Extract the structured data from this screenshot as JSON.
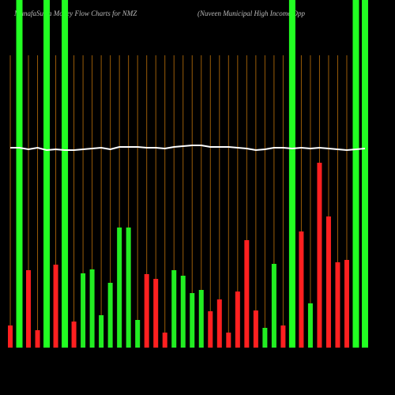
{
  "chart_data": {
    "type": "bar",
    "title": "MunafaSutra  Money Flow  Charts for NMZ",
    "subtitle": "(Nuveen  Municipal High Income   Opp",
    "ylim": [
      0,
      370
    ],
    "values": [
      28,
      null,
      98,
      22,
      null,
      105,
      null,
      33,
      94,
      99,
      41,
      82,
      152,
      152,
      35,
      93,
      87,
      19,
      98,
      91,
      69,
      73,
      46,
      61,
      19,
      71,
      136,
      47,
      25,
      106,
      28,
      null,
      147,
      56,
      234,
      166,
      108,
      111,
      null,
      null
    ],
    "colors": [
      "#ff2020",
      null,
      "#ff2020",
      "#ff2020",
      null,
      "#ff2020",
      null,
      "#ff2020",
      "#22ee22",
      "#22ee22",
      "#22ee22",
      "#22ee22",
      "#22ee22",
      "#22ee22",
      "#22ee22",
      "#ff2020",
      "#ff2020",
      "#ff2020",
      "#22ee22",
      "#22ee22",
      "#22ee22",
      "#22ee22",
      "#ff2020",
      "#ff2020",
      "#ff2020",
      "#ff2020",
      "#ff2020",
      "#ff2020",
      "#22ee22",
      "#22ee22",
      "#ff2020",
      null,
      "#ff2020",
      "#22ee22",
      "#ff2020",
      "#ff2020",
      "#ff2020",
      "#ff2020",
      null,
      null
    ],
    "highlights": [
      false,
      true,
      false,
      false,
      true,
      false,
      true,
      false,
      false,
      false,
      false,
      false,
      false,
      false,
      false,
      false,
      false,
      false,
      false,
      false,
      false,
      false,
      false,
      false,
      false,
      false,
      false,
      false,
      false,
      false,
      false,
      true,
      false,
      false,
      false,
      false,
      false,
      false,
      true,
      true
    ],
    "highlight_color": "#22ff22",
    "guide_color": "#9a5c08",
    "line": {
      "color": "#ffffff",
      "values": [
        253,
        253,
        251,
        253,
        250,
        251,
        250,
        250,
        251,
        252,
        253,
        251,
        254,
        254,
        254,
        253,
        253,
        252,
        254,
        255,
        256,
        256,
        254,
        254,
        254,
        253,
        252,
        250,
        251,
        253,
        253,
        252,
        253,
        252,
        253,
        252,
        251,
        250,
        251,
        252
      ]
    }
  }
}
